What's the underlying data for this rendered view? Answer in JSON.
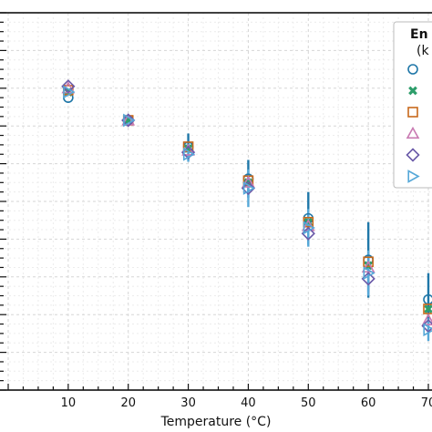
{
  "chart_data": {
    "type": "scatter",
    "title": "",
    "xlabel": "Temperature (°C)",
    "ylabel": "",
    "x": [
      10,
      20,
      30,
      40,
      50,
      60,
      70
    ],
    "xlim": [
      0,
      70
    ],
    "ylim": [
      0,
      1
    ],
    "grid": true,
    "legend": {
      "placement": "top-right",
      "title_line1": "En",
      "title_line2": "(k"
    },
    "series": [
      {
        "marker": "circle",
        "color": "#1f77a8",
        "values": [
          0.775,
          0.715,
          0.645,
          0.56,
          0.455,
          0.345,
          0.24
        ],
        "err": [
          0,
          0,
          0.035,
          0.05,
          0.07,
          0.1,
          0.07
        ]
      },
      {
        "marker": "x",
        "color": "#2e9e6b",
        "values": [
          0.79,
          0.715,
          0.64,
          0.55,
          0.445,
          0.33,
          0.215
        ],
        "err": [
          0,
          0,
          0,
          0,
          0,
          0,
          0
        ]
      },
      {
        "marker": "square",
        "color": "#c8691c",
        "values": [
          0.795,
          0.715,
          0.645,
          0.555,
          0.445,
          0.34,
          0.215
        ],
        "err": [
          0,
          0,
          0,
          0,
          0,
          0,
          0
        ]
      },
      {
        "marker": "triangle-up",
        "color": "#c97ab2",
        "values": [
          0.8,
          0.715,
          0.635,
          0.55,
          0.435,
          0.325,
          0.185
        ],
        "err": [
          0,
          0,
          0,
          0,
          0,
          0,
          0
        ]
      },
      {
        "marker": "diamond",
        "color": "#6a5aa8",
        "values": [
          0.805,
          0.715,
          0.63,
          0.535,
          0.415,
          0.295,
          0.17
        ],
        "err": [
          0,
          0,
          0,
          0,
          0,
          0.035,
          0
        ]
      },
      {
        "marker": "triangle-right",
        "color": "#56a8d8",
        "values": [
          0.79,
          0.715,
          0.625,
          0.535,
          0.43,
          0.31,
          0.16
        ],
        "err": [
          0,
          0,
          0.02,
          0.05,
          0.05,
          0.06,
          0.03
        ]
      }
    ]
  }
}
